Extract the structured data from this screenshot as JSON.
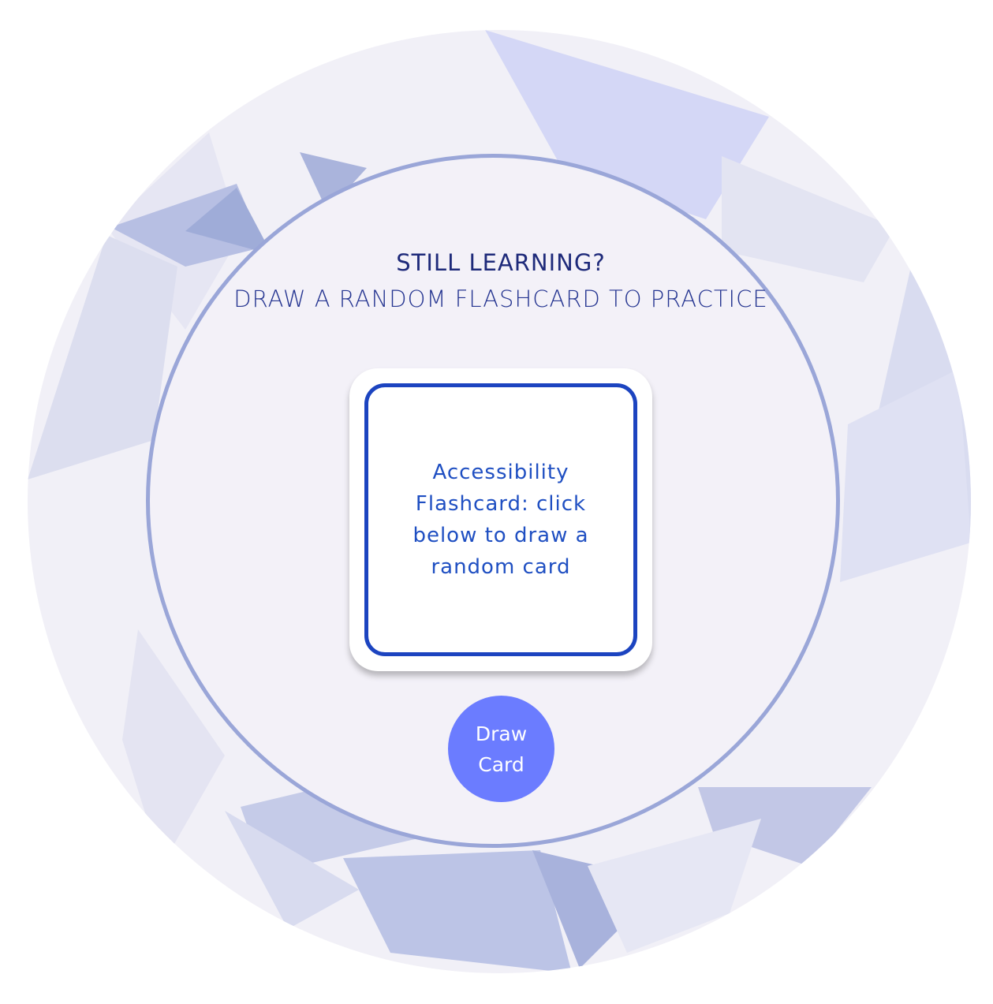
{
  "heading": {
    "main": "STILL LEARNING?",
    "sub": "DRAW A RANDOM FLASHCARD TO PRACTICE"
  },
  "flashcard": {
    "text": "Accessibility Flashcard: click below to draw a random card"
  },
  "draw_button": {
    "label": "Draw Card"
  },
  "colors": {
    "accent": "#6b7cff",
    "card_border": "#1c44c0",
    "heading": "#1e2a7a",
    "ring": "#9aa6d8"
  }
}
